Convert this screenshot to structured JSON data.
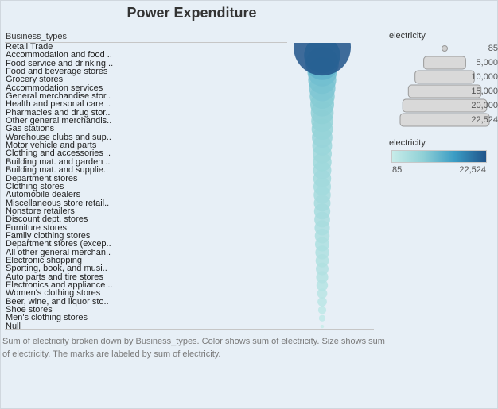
{
  "title": "Power Expenditure",
  "row_header": "Business_types",
  "caption": "Sum of electricity broken down by Business_types.  Color shows sum of electricity.  Size shows sum of electricity.  The marks are labeled by sum of electricity.",
  "legend": {
    "size_title": "electricity",
    "size_labels": [
      "85",
      "5,000",
      "10,000",
      "15,000",
      "20,000",
      "22,524"
    ],
    "color_title": "electricity",
    "color_min": "85",
    "color_max": "22,524",
    "color_low": "#c7ece9",
    "color_high": "#20548a"
  },
  "chart_data": {
    "type": "scatter",
    "title": "Power Expenditure",
    "dimension": "Business_types",
    "measure": "Sum of electricity",
    "categories": [
      "Retail Trade",
      "Accommodation and food ..",
      "Food service and drinking ..",
      "Food and beverage stores",
      "Grocery stores",
      "Accommodation services",
      "General merchandise stor..",
      "Health and personal care ..",
      "Pharmacies and drug stor..",
      "Other general merchandis..",
      "Gas stations",
      "Warehouse clubs and sup..",
      "Motor vehicle and parts",
      "Clothing and accessories ..",
      "Building mat. and garden ..",
      "Building mat. and supplie..",
      "Department stores",
      "Clothing stores",
      "Automobile dealers",
      "Miscellaneous store retail..",
      "Nonstore retailers",
      "Discount dept. stores",
      "Furniture stores",
      "Family clothing stores",
      "Department stores (excep..",
      "All other general merchan..",
      "Electronic shopping",
      "Sporting, book, and  musi..",
      "Auto parts and tire stores",
      "Electronics and appliance ..",
      "Women's clothing stores",
      "Beer, wine, and liquor sto..",
      "Shoe stores",
      "Men's clothing stores",
      "Null"
    ],
    "values": [
      22524,
      9000,
      7600,
      6000,
      5400,
      4800,
      4300,
      3900,
      3600,
      3300,
      3100,
      2900,
      2700,
      2500,
      2400,
      2300,
      2200,
      2100,
      2000,
      1900,
      1800,
      1700,
      1600,
      1500,
      1400,
      1300,
      1200,
      1100,
      1000,
      900,
      700,
      600,
      450,
      300,
      85
    ],
    "color_range": [
      85,
      22524
    ],
    "size_range": [
      85,
      22524
    ]
  }
}
